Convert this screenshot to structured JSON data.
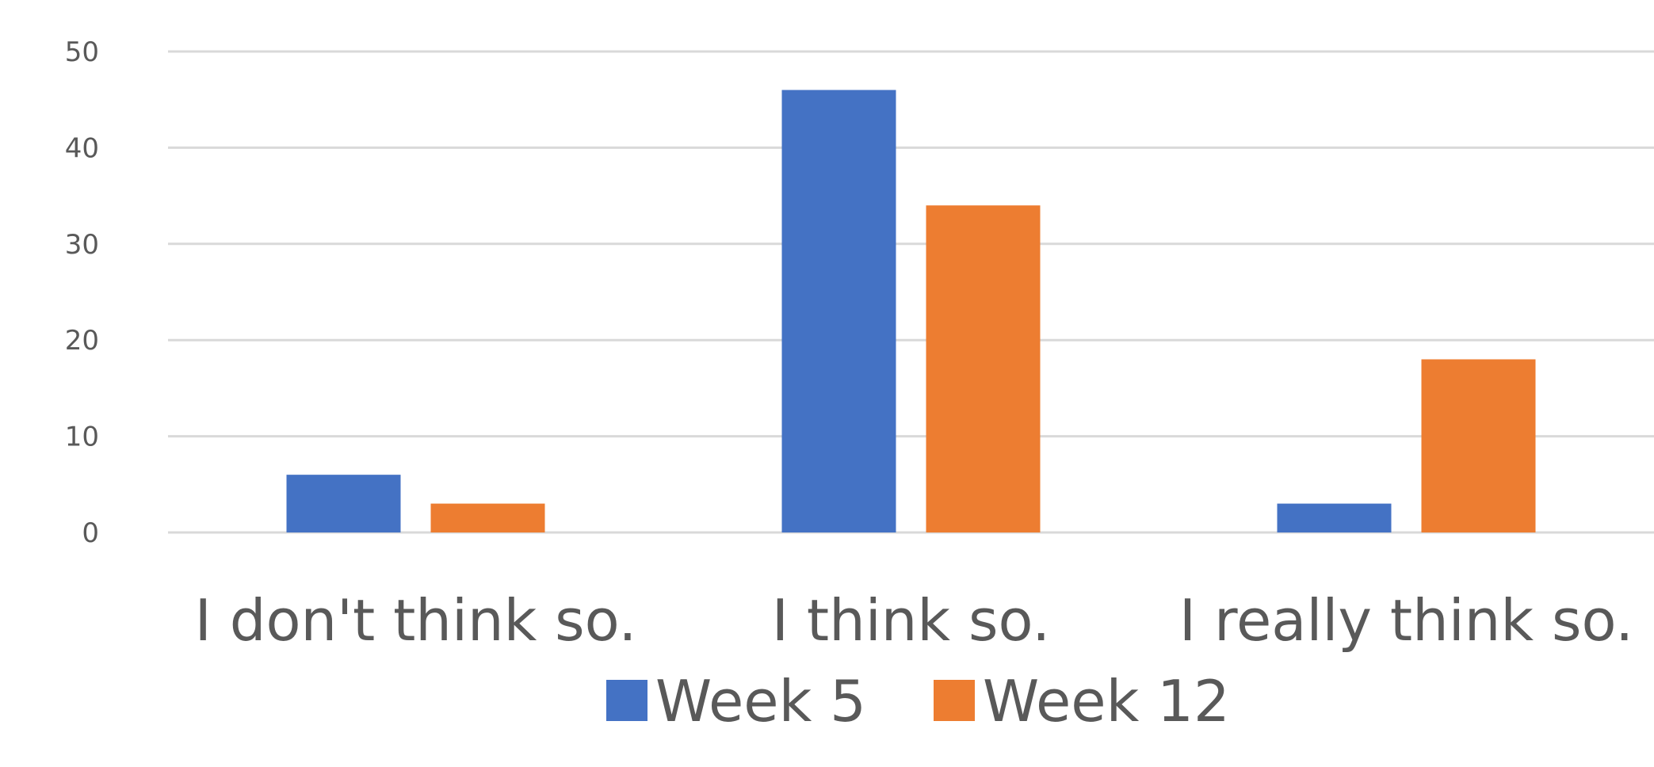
{
  "chart_data": {
    "type": "bar",
    "categories": [
      "I don't think so.",
      "I think so.",
      "I really think so."
    ],
    "series": [
      {
        "name": "Week 5",
        "values": [
          6,
          46,
          3
        ],
        "color": "#4472C4"
      },
      {
        "name": "Week 12",
        "values": [
          3,
          34,
          18
        ],
        "color": "#ED7D31"
      }
    ],
    "ylim": [
      0,
      50
    ],
    "yticks": [
      0,
      10,
      20,
      30,
      40,
      50
    ],
    "grid": true,
    "legend_position": "bottom"
  }
}
